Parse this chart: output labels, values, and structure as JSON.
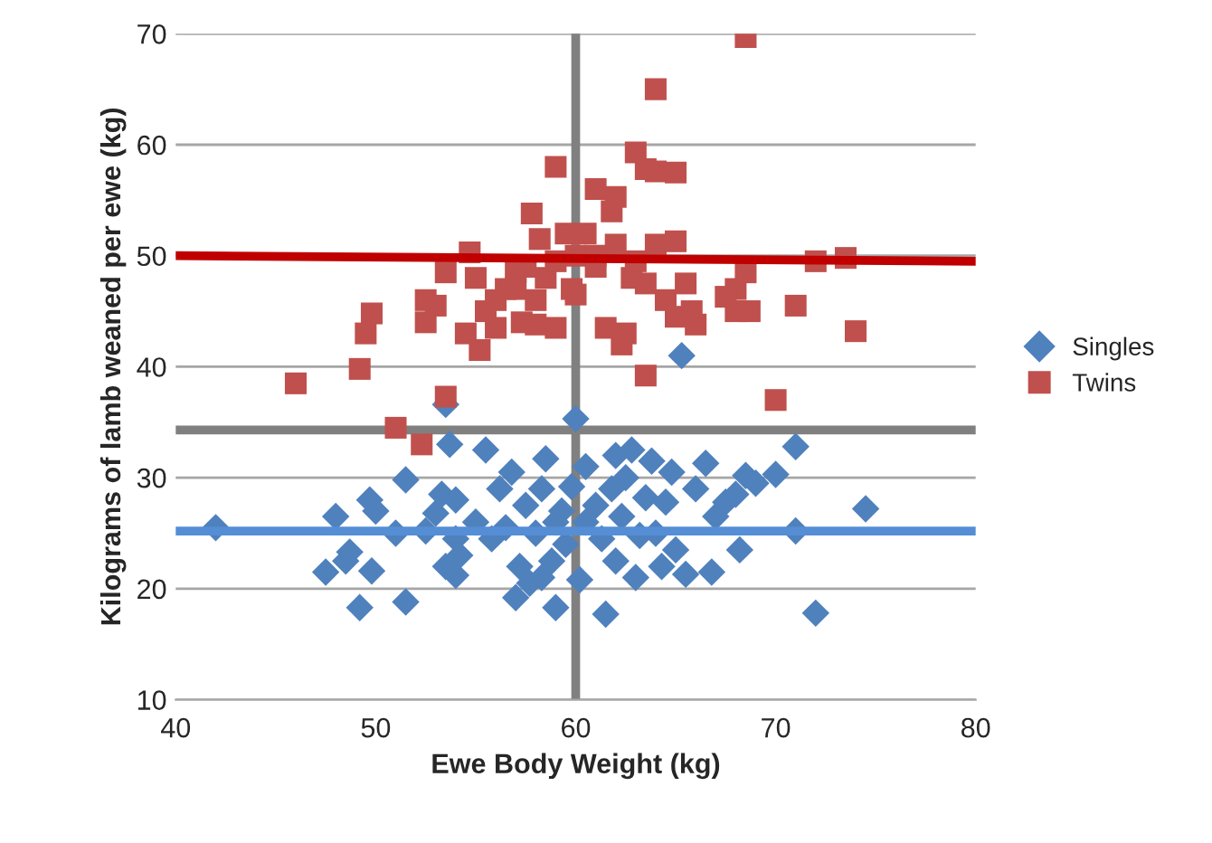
{
  "chart_data": {
    "type": "scatter",
    "xlabel": "Ewe Body Weight (kg)",
    "ylabel": "Kilograms of lamb weaned per ewe (kg)",
    "xlim": [
      40,
      80
    ],
    "xticks": [
      40,
      50,
      60,
      70,
      80
    ],
    "ylim": [
      10,
      70
    ],
    "yticks": [
      10,
      20,
      30,
      40,
      50,
      60,
      70
    ],
    "grid": "y",
    "legend": "right",
    "series": [
      {
        "name": "Singles",
        "marker": "diamond",
        "color": "#4f81bd",
        "x": [
          42,
          47.5,
          48,
          48.5,
          48.7,
          49.2,
          49.7,
          50,
          49.8,
          51,
          51.5,
          51.5,
          52.5,
          53,
          53.3,
          53.5,
          53.7,
          54,
          54,
          54,
          54.2,
          55,
          55.5,
          55.8,
          56.2,
          56.5,
          56.8,
          57,
          57.2,
          57.5,
          57.7,
          58,
          58.3,
          58.5,
          58.8,
          59,
          59.3,
          59.5,
          59.8,
          60,
          60.2,
          60.5,
          61,
          61.3,
          61.5,
          61.8,
          62,
          62,
          62.3,
          62.5,
          62.8,
          63,
          63.2,
          63.5,
          63.8,
          64,
          64.3,
          64.5,
          64.8,
          65,
          65.3,
          65.5,
          66,
          66.5,
          66.8,
          67,
          67.5,
          68,
          68.2,
          68.5,
          69,
          70,
          71,
          71,
          72,
          74.5,
          53.5,
          58.3,
          60.5,
          59
        ],
        "values": [
          25.5,
          21.5,
          26.5,
          22.5,
          23.3,
          18.3,
          28,
          27,
          21.6,
          25,
          29.8,
          18.8,
          25.2,
          26.8,
          28.5,
          22,
          33,
          21.2,
          24.5,
          28,
          23,
          26,
          32.5,
          24.5,
          29,
          25.5,
          30.5,
          19.2,
          22,
          27.5,
          20.5,
          25,
          29,
          31.7,
          22.5,
          18.3,
          27,
          24,
          29.2,
          35.3,
          20.8,
          31,
          27.5,
          24.5,
          17.7,
          29,
          32,
          22.5,
          26.5,
          30,
          32.5,
          21,
          24.8,
          28.2,
          31.5,
          25,
          22,
          27.8,
          30.5,
          23.5,
          41,
          21.3,
          29,
          31.3,
          21.5,
          26.5,
          27.8,
          28.5,
          23.5,
          30.2,
          29.5,
          30.3,
          32.8,
          25.2,
          17.8,
          27.2,
          36.6,
          21,
          26,
          26
        ]
      },
      {
        "name": "Twins",
        "marker": "square",
        "color": "#c0504d",
        "x": [
          46,
          49.2,
          49.5,
          49.8,
          51,
          52.3,
          52.5,
          52.5,
          53,
          53.5,
          53.5,
          54.5,
          54.7,
          55,
          55.2,
          55.5,
          56,
          56,
          56.5,
          57,
          57,
          57.3,
          57.5,
          57.8,
          58,
          58,
          58.2,
          58.5,
          59,
          59,
          59,
          59.5,
          59.8,
          60,
          60.5,
          61,
          61,
          61.5,
          61.8,
          62,
          62,
          62.3,
          62.5,
          62.8,
          63,
          63.5,
          63.5,
          63.5,
          64,
          64,
          64,
          64.5,
          65,
          65,
          65,
          65.5,
          65.8,
          66,
          68,
          68,
          68.5,
          68.5,
          68.7,
          70,
          71,
          72,
          73.5,
          74,
          67.5,
          63,
          61,
          60
        ],
        "values": [
          38.5,
          39.8,
          43,
          44.8,
          34.5,
          33,
          44,
          46,
          45.5,
          37.3,
          48.5,
          43,
          50.3,
          48,
          41.5,
          45,
          46,
          43.5,
          47,
          48.5,
          47,
          44,
          49,
          53.8,
          43.8,
          46,
          51.5,
          48,
          58,
          43.5,
          49.5,
          52,
          47,
          50,
          52,
          56,
          50,
          43.5,
          54,
          55.3,
          51,
          42,
          43,
          48,
          59.3,
          57.8,
          39.2,
          47.5,
          65,
          57.6,
          51,
          46,
          57.5,
          51.3,
          44.5,
          47.5,
          45,
          43.8,
          45,
          47,
          69.7,
          48.5,
          45,
          37,
          45.5,
          49.5,
          49.8,
          43.2,
          46.3,
          49.5,
          49,
          46.5
        ]
      },
      {
        "type": "line",
        "marker": "none",
        "color": "#558ed5",
        "x": [
          40,
          80
        ],
        "values": [
          25.2,
          25.2
        ]
      },
      {
        "type": "line",
        "marker": "none",
        "color": "#c00000",
        "x": [
          40,
          80
        ],
        "values": [
          50,
          49.5
        ]
      }
    ],
    "ref_lines": [
      {
        "axis": "x",
        "value": 60,
        "color": "#808080"
      },
      {
        "axis": "y",
        "value": 34.3,
        "color": "#808080"
      }
    ]
  }
}
